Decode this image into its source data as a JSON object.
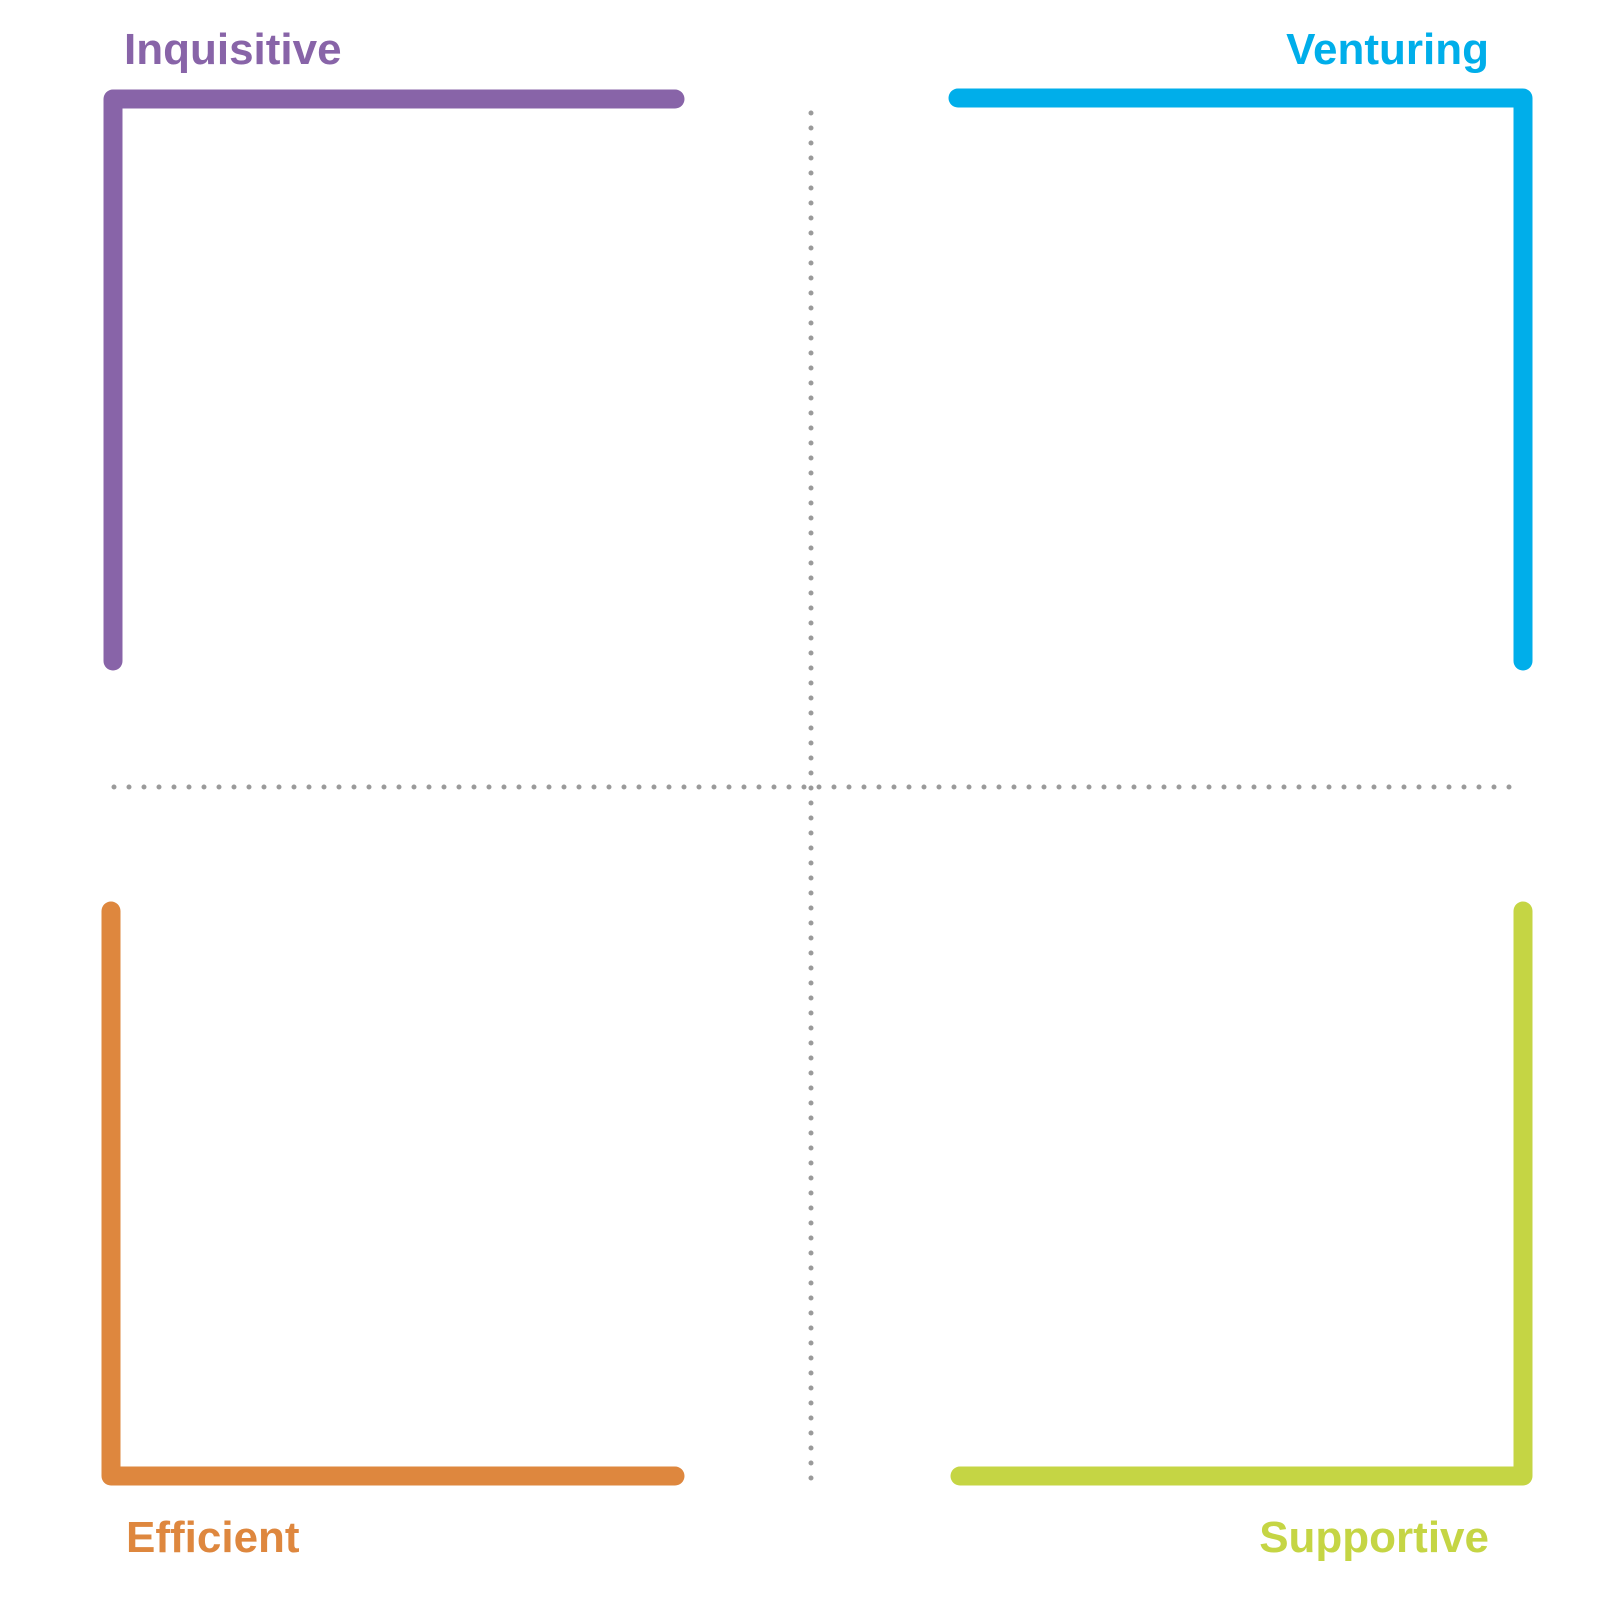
{
  "quadrants": {
    "top_left": {
      "label": "Inquisitive",
      "color": "#8864A8"
    },
    "top_right": {
      "label": "Venturing",
      "color": "#00AEEA"
    },
    "bottom_left": {
      "label": "Efficient",
      "color": "#DE873E"
    },
    "bottom_right": {
      "label": "Supportive",
      "color": "#C5D544"
    }
  },
  "divider_color": "#9A9A9A"
}
